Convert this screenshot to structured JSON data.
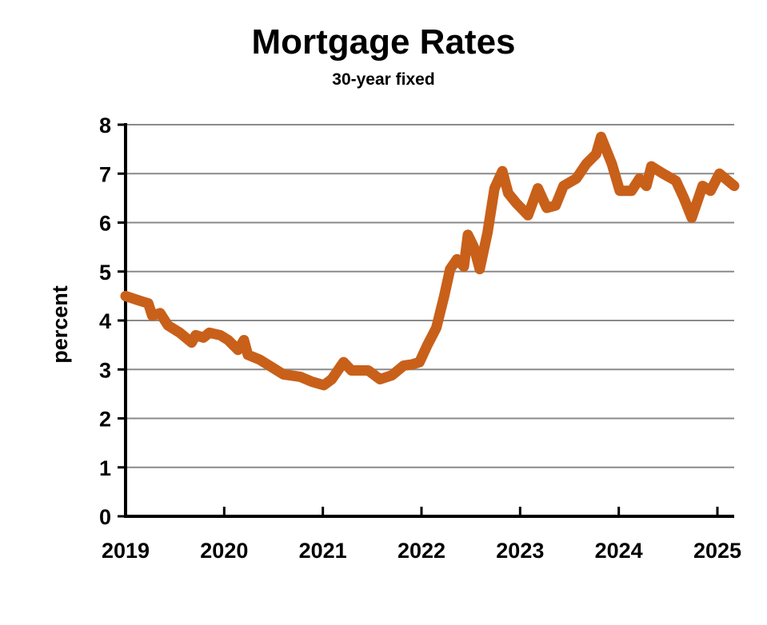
{
  "chart_data": {
    "type": "line",
    "title": "Mortgage Rates",
    "subtitle": "30-year fixed",
    "xlabel": "",
    "ylabel": "percent",
    "xlim": [
      2019,
      2025.17
    ],
    "ylim": [
      0,
      8
    ],
    "xticks": [
      "2019",
      "2020",
      "2021",
      "2022",
      "2023",
      "2024",
      "2025"
    ],
    "yticks": [
      "0",
      "1",
      "2",
      "3",
      "4",
      "5",
      "6",
      "7",
      "8"
    ],
    "grid": "horizontal",
    "line_color": "#C8601A",
    "series": [
      {
        "x": [
          2019.0,
          2019.15,
          2019.23,
          2019.27,
          2019.35,
          2019.43,
          2019.55,
          2019.67,
          2019.71,
          2019.79,
          2019.85,
          2019.96,
          2020.04,
          2020.14,
          2020.2,
          2020.24,
          2020.36,
          2020.48,
          2020.6,
          2020.77,
          2020.89,
          2021.01,
          2021.09,
          2021.21,
          2021.29,
          2021.46,
          2021.58,
          2021.7,
          2021.82,
          2021.9,
          2021.98,
          2022.06,
          2022.15,
          2022.23,
          2022.29,
          2022.36,
          2022.43,
          2022.47,
          2022.53,
          2022.59,
          2022.67,
          2022.74,
          2022.82,
          2022.88,
          2022.96,
          2023.08,
          2023.18,
          2023.27,
          2023.36,
          2023.44,
          2023.57,
          2023.67,
          2023.77,
          2023.82,
          2023.93,
          2024.01,
          2024.13,
          2024.21,
          2024.28,
          2024.33,
          2024.45,
          2024.58,
          2024.66,
          2024.74,
          2024.85,
          2024.93,
          2025.02,
          2025.17
        ],
        "y": [
          4.5,
          4.4,
          4.35,
          4.1,
          4.15,
          3.9,
          3.75,
          3.55,
          3.7,
          3.65,
          3.75,
          3.7,
          3.6,
          3.4,
          3.6,
          3.3,
          3.2,
          3.05,
          2.9,
          2.85,
          2.75,
          2.68,
          2.8,
          3.15,
          2.98,
          2.98,
          2.8,
          2.88,
          3.08,
          3.1,
          3.15,
          3.5,
          3.85,
          4.5,
          5.05,
          5.25,
          5.1,
          5.75,
          5.5,
          5.05,
          5.8,
          6.7,
          7.05,
          6.6,
          6.4,
          6.15,
          6.7,
          6.3,
          6.35,
          6.75,
          6.9,
          7.2,
          7.4,
          7.75,
          7.2,
          6.65,
          6.65,
          6.9,
          6.75,
          7.15,
          7.0,
          6.85,
          6.5,
          6.1,
          6.75,
          6.65,
          7.0,
          6.75
        ]
      }
    ]
  }
}
